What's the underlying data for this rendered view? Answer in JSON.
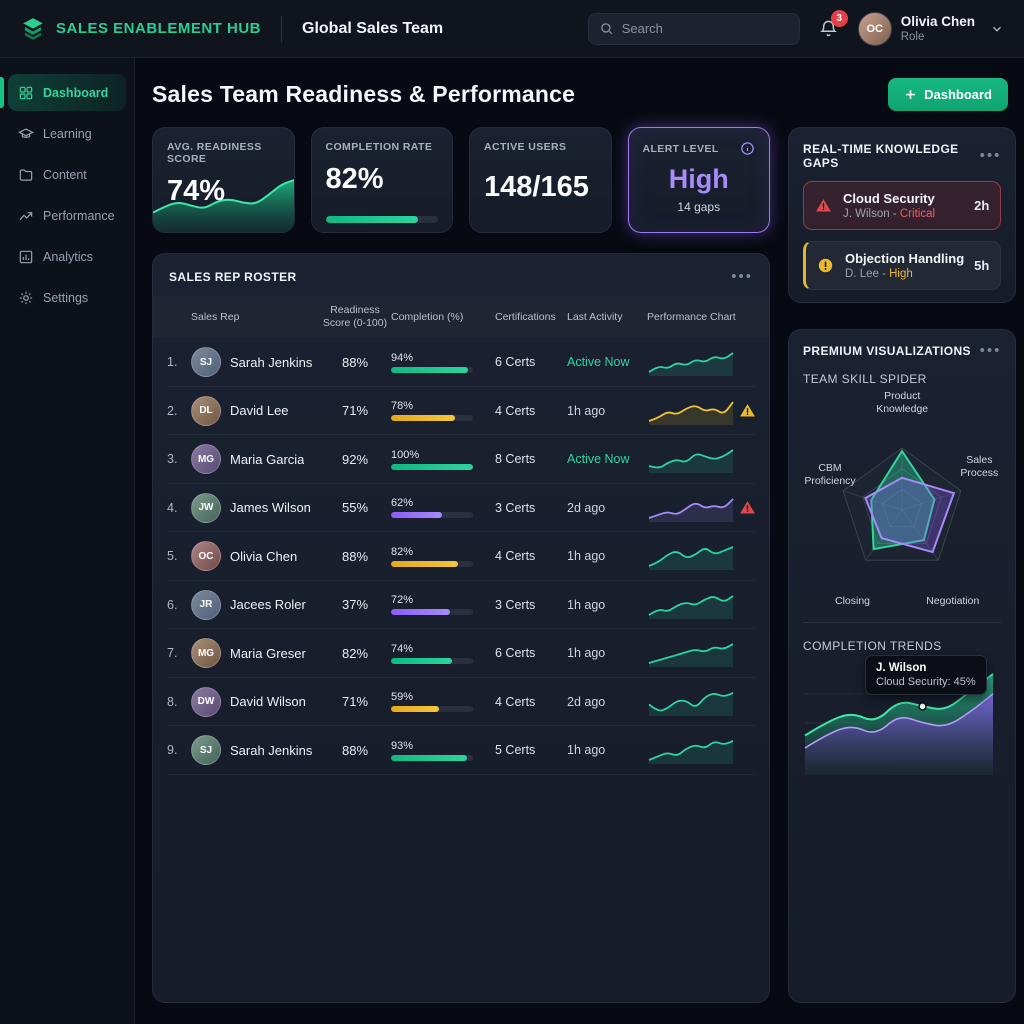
{
  "topbar": {
    "brand": "SALES ENABLEMENT HUB",
    "workspace": "Global Sales Team",
    "search_placeholder": "Search",
    "notification_count": "3",
    "user": {
      "name": "Olivia Chen",
      "role": "Role",
      "initials": "OC"
    }
  },
  "sidebar": {
    "items": [
      {
        "label": "Dashboard",
        "icon": "grid",
        "active": true
      },
      {
        "label": "Learning",
        "icon": "graduation-cap",
        "active": false
      },
      {
        "label": "Content",
        "icon": "folder",
        "active": false
      },
      {
        "label": "Performance",
        "icon": "trend-up",
        "active": false
      },
      {
        "label": "Analytics",
        "icon": "bar-chart",
        "active": false
      },
      {
        "label": "Settings",
        "icon": "gear",
        "active": false
      }
    ]
  },
  "page": {
    "title": "Sales Team Readiness & Performance",
    "action_button": "Dashboard"
  },
  "kpis": {
    "readiness": {
      "label": "AVG. READINESS SCORE",
      "value": "74%"
    },
    "completion": {
      "label": "COMPLETION RATE",
      "value": "82%",
      "progress": 82
    },
    "active_users": {
      "label": "ACTIVE USERS",
      "value": "148/165"
    },
    "alert": {
      "label": "ALERT LEVEL",
      "value": "High",
      "sub": "14 gaps"
    }
  },
  "knowledge_gaps": {
    "title": "REAL-TIME KNOWLEDGE GAPS",
    "items": [
      {
        "topic": "Cloud Security",
        "person": "J. Wilson - ",
        "severity": "Critical",
        "time": "2h",
        "level": "critical"
      },
      {
        "topic": "Objection Handling",
        "person": "D. Lee - ",
        "severity": "High",
        "time": "5h",
        "level": "high"
      }
    ]
  },
  "roster": {
    "title": "SALES REP ROSTER",
    "columns": [
      "Sales Rep",
      "Readiness Score (0-100)",
      "Completion (%)",
      "Certifications",
      "Last Activity",
      "Performance Chart"
    ],
    "rows": [
      {
        "rank": "1.",
        "name": "Sarah Jenkins",
        "initials": "SJ",
        "readiness": "88%",
        "completion": 94,
        "completion_label": "94%",
        "bar_color": "green",
        "certs": "6 Certs",
        "activity": "Active Now",
        "active_now": true,
        "spark_color": "#2dd4a0",
        "spark": [
          4,
          6,
          5,
          7,
          6,
          8,
          7,
          9,
          8,
          10
        ],
        "alert": null
      },
      {
        "rank": "2.",
        "name": "David Lee",
        "initials": "DL",
        "readiness": "71%",
        "completion": 78,
        "completion_label": "78%",
        "bar_color": "yellow",
        "certs": "4 Certs",
        "activity": "1h ago",
        "active_now": false,
        "spark_color": "#f0c330",
        "spark": [
          3,
          4,
          6,
          5,
          7,
          8,
          6,
          7,
          5,
          9
        ],
        "alert": "warning"
      },
      {
        "rank": "3.",
        "name": "Maria Garcia",
        "initials": "MG",
        "readiness": "92%",
        "completion": 100,
        "completion_label": "100%",
        "bar_color": "green",
        "certs": "8 Certs",
        "activity": "Active Now",
        "active_now": true,
        "spark_color": "#2dd4a0",
        "spark": [
          5,
          4,
          6,
          7,
          6,
          9,
          8,
          7,
          8,
          10
        ],
        "alert": null
      },
      {
        "rank": "4.",
        "name": "James Wilson",
        "initials": "JW",
        "readiness": "55%",
        "completion": 62,
        "completion_label": "62%",
        "bar_color": "purple",
        "certs": "3 Certs",
        "activity": "2d ago",
        "active_now": false,
        "spark_color": "#a78bfa",
        "spark": [
          3,
          4,
          5,
          4,
          6,
          8,
          6,
          7,
          6,
          9
        ],
        "alert": "critical"
      },
      {
        "rank": "5.",
        "name": "Olivia Chen",
        "initials": "OC",
        "readiness": "88%",
        "completion": 82,
        "completion_label": "82%",
        "bar_color": "yellow",
        "certs": "4 Certs",
        "activity": "1h ago",
        "active_now": false,
        "spark_color": "#2dd4a0",
        "spark": [
          4,
          5,
          7,
          8,
          6,
          7,
          9,
          7,
          8,
          9
        ],
        "alert": null
      },
      {
        "rank": "6.",
        "name": "Jacees Roler",
        "initials": "JR",
        "readiness": "37%",
        "completion": 72,
        "completion_label": "72%",
        "bar_color": "purple",
        "certs": "3 Certs",
        "activity": "1h ago",
        "active_now": false,
        "spark_color": "#2dd4a0",
        "spark": [
          3,
          5,
          4,
          6,
          7,
          6,
          8,
          9,
          7,
          9
        ],
        "alert": null
      },
      {
        "rank": "7.",
        "name": "Maria Greser",
        "initials": "MG",
        "readiness": "82%",
        "completion": 74,
        "completion_label": "74%",
        "bar_color": "green",
        "certs": "6 Certs",
        "activity": "1h ago",
        "active_now": false,
        "spark_color": "#2dd4a0",
        "spark": [
          3,
          4,
          5,
          6,
          7,
          8,
          7,
          9,
          8,
          10
        ],
        "alert": null
      },
      {
        "rank": "8.",
        "name": "David Wilson",
        "initials": "DW",
        "readiness": "71%",
        "completion": 59,
        "completion_label": "59%",
        "bar_color": "yellow",
        "certs": "4 Certs",
        "activity": "2d ago",
        "active_now": false,
        "spark_color": "#2dd4a0",
        "spark": [
          6,
          4,
          5,
          7,
          7,
          5,
          8,
          9,
          8,
          9
        ],
        "alert": null
      },
      {
        "rank": "9.",
        "name": "Sarah Jenkins",
        "initials": "SJ",
        "readiness": "88%",
        "completion": 93,
        "completion_label": "93%",
        "bar_color": "green",
        "certs": "5 Certs",
        "activity": "1h ago",
        "active_now": false,
        "spark_color": "#2dd4a0",
        "spark": [
          4,
          5,
          6,
          5,
          7,
          8,
          7,
          9,
          8,
          9
        ],
        "alert": null
      }
    ]
  },
  "premium": {
    "title": "PREMIUM VISUALIZATIONS",
    "spider_title": "TEAM SKILL SPIDER",
    "trends_title": "COMPLETION TRENDS",
    "tooltip": {
      "name": "J. Wilson",
      "detail": "Cloud Security: 45%"
    }
  },
  "colors": {
    "accent_green": "#10b981",
    "accent_purple": "#a78bfa",
    "accent_yellow": "#fbbf24",
    "accent_red": "#ef4444"
  },
  "chart_data": [
    {
      "type": "area",
      "title": "AVG. READINESS SCORE sparkline",
      "values": [
        28,
        42,
        50,
        42,
        36,
        52,
        56,
        48,
        46,
        66,
        88,
        96
      ],
      "ylim": [
        0,
        100
      ],
      "color": "#2dd4a0"
    },
    {
      "type": "radar",
      "title": "TEAM SKILL SPIDER",
      "axes": [
        "Product Knowledge",
        "Sales Process",
        "Negotiation",
        "Closing",
        "CBM Proficiency"
      ],
      "max": 100,
      "grid_levels": 3,
      "series": [
        {
          "name": "green",
          "color": "#34d399",
          "values": [
            95,
            55,
            60,
            78,
            52
          ]
        },
        {
          "name": "purple",
          "color": "#a78bfa",
          "values": [
            52,
            88,
            84,
            56,
            62
          ]
        }
      ]
    },
    {
      "type": "area",
      "title": "COMPLETION TRENDS",
      "x": [
        1,
        2,
        3,
        4,
        5,
        6,
        7,
        8,
        9
      ],
      "ylim": [
        0,
        100
      ],
      "grid": true,
      "series": [
        {
          "name": "completion-high",
          "color": "#34d399",
          "values": [
            38,
            52,
            60,
            50,
            72,
            66,
            62,
            80,
            97
          ]
        },
        {
          "name": "completion-low",
          "color": "#a78bfa",
          "values": [
            26,
            40,
            48,
            38,
            58,
            50,
            46,
            60,
            78
          ]
        }
      ],
      "annotation": {
        "label": "J. Wilson",
        "detail": "Cloud Security: 45%",
        "series": "completion-high",
        "point_index": 5
      }
    }
  ]
}
